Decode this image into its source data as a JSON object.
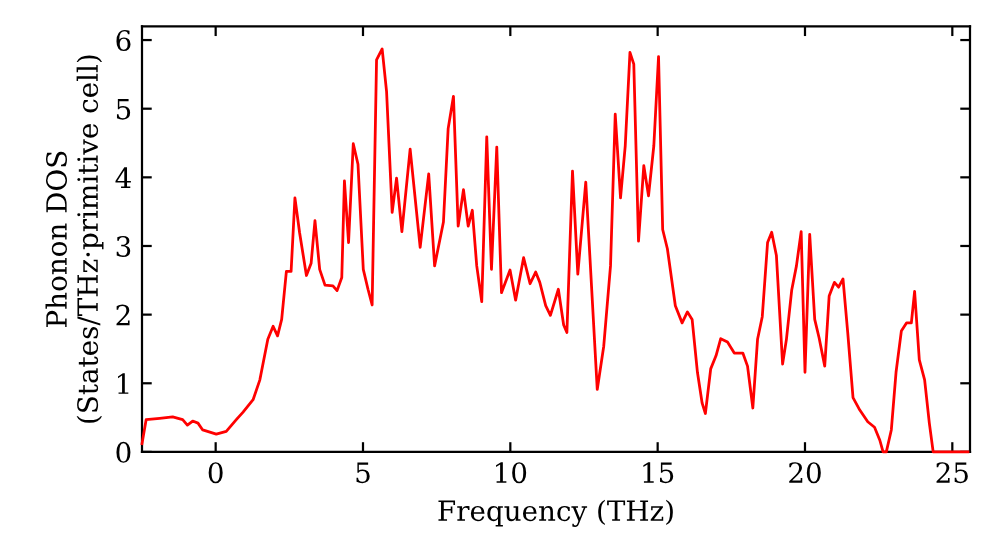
{
  "chart_data": {
    "type": "line",
    "xlabel": "Frequency (THz)",
    "ylabel": "Phonon DOS\n(States/THz·primitive cell)",
    "xlim": [
      -2.5,
      25.6
    ],
    "ylim": [
      0,
      6.2
    ],
    "xticks": [
      0,
      5,
      10,
      15,
      20,
      25
    ],
    "yticks": [
      0,
      1,
      2,
      3,
      4,
      5,
      6
    ],
    "grid": false,
    "legend": false,
    "marker": "none",
    "line_style": "solid",
    "series": [
      {
        "color": "#ff0000",
        "x": [
          -2.5,
          -2.36,
          -1.9,
          -1.46,
          -1.12,
          -0.96,
          -0.78,
          -0.6,
          -0.44,
          0.02,
          0.36,
          0.7,
          0.93,
          1.27,
          1.5,
          1.77,
          1.95,
          2.1,
          2.24,
          2.4,
          2.56,
          2.69,
          2.85,
          3.08,
          3.24,
          3.37,
          3.53,
          3.71,
          3.98,
          4.12,
          4.28,
          4.37,
          4.51,
          4.67,
          4.83,
          5.01,
          5.17,
          5.31,
          5.46,
          5.65,
          5.8,
          5.99,
          6.14,
          6.32,
          6.6,
          6.94,
          7.23,
          7.43,
          7.73,
          7.89,
          8.07,
          8.23,
          8.41,
          8.57,
          8.71,
          8.86,
          9.03,
          9.2,
          9.36,
          9.54,
          9.7,
          9.99,
          10.18,
          10.45,
          10.67,
          10.86,
          11.0,
          11.2,
          11.36,
          11.63,
          11.81,
          11.92,
          12.11,
          12.29,
          12.56,
          12.95,
          13.17,
          13.4,
          13.56,
          13.74,
          13.9,
          14.06,
          14.19,
          14.35,
          14.53,
          14.69,
          14.87,
          15.03,
          15.17,
          15.33,
          15.6,
          15.83,
          16.01,
          16.17,
          16.35,
          16.51,
          16.62,
          16.8,
          16.98,
          17.14,
          17.37,
          17.6,
          17.89,
          18.05,
          18.23,
          18.39,
          18.55,
          18.73,
          18.87,
          19.03,
          19.24,
          19.37,
          19.55,
          19.71,
          19.87,
          20.0,
          20.16,
          20.33,
          20.48,
          20.67,
          20.82,
          21.0,
          21.14,
          21.29,
          21.45,
          21.63,
          21.86,
          22.13,
          22.36,
          22.54,
          22.65,
          22.76,
          22.93,
          23.09,
          23.27,
          23.45,
          23.61,
          23.72,
          23.88,
          24.06,
          24.22,
          24.35,
          25.53
        ],
        "values": [
          0.12,
          0.47,
          0.49,
          0.51,
          0.47,
          0.39,
          0.45,
          0.42,
          0.32,
          0.26,
          0.3,
          0.47,
          0.58,
          0.76,
          1.05,
          1.64,
          1.83,
          1.69,
          1.93,
          2.63,
          2.63,
          3.7,
          3.19,
          2.57,
          2.75,
          3.37,
          2.66,
          2.43,
          2.42,
          2.35,
          2.54,
          3.95,
          3.05,
          4.49,
          4.19,
          2.66,
          2.37,
          2.14,
          5.71,
          5.87,
          5.25,
          3.49,
          3.99,
          3.21,
          4.41,
          2.98,
          4.05,
          2.71,
          3.35,
          4.71,
          5.18,
          3.29,
          3.82,
          3.29,
          3.52,
          2.71,
          2.19,
          4.59,
          2.66,
          4.44,
          2.32,
          2.65,
          2.21,
          2.83,
          2.45,
          2.62,
          2.47,
          2.13,
          1.99,
          2.37,
          1.85,
          1.74,
          4.09,
          2.59,
          3.93,
          0.91,
          1.54,
          2.71,
          4.92,
          3.7,
          4.46,
          5.82,
          5.65,
          3.07,
          4.17,
          3.73,
          4.46,
          5.76,
          3.24,
          2.96,
          2.13,
          1.88,
          2.04,
          1.93,
          1.16,
          0.71,
          0.56,
          1.21,
          1.4,
          1.65,
          1.6,
          1.44,
          1.44,
          1.25,
          0.64,
          1.64,
          1.97,
          3.05,
          3.2,
          2.86,
          1.28,
          1.64,
          2.36,
          2.71,
          3.21,
          1.16,
          3.17,
          1.93,
          1.66,
          1.25,
          2.27,
          2.47,
          2.4,
          2.52,
          1.74,
          0.79,
          0.61,
          0.44,
          0.36,
          0.17,
          0,
          0,
          0.32,
          1.16,
          1.76,
          1.88,
          1.88,
          2.34,
          1.34,
          1.05,
          0.42,
          0,
          0
        ]
      }
    ]
  }
}
